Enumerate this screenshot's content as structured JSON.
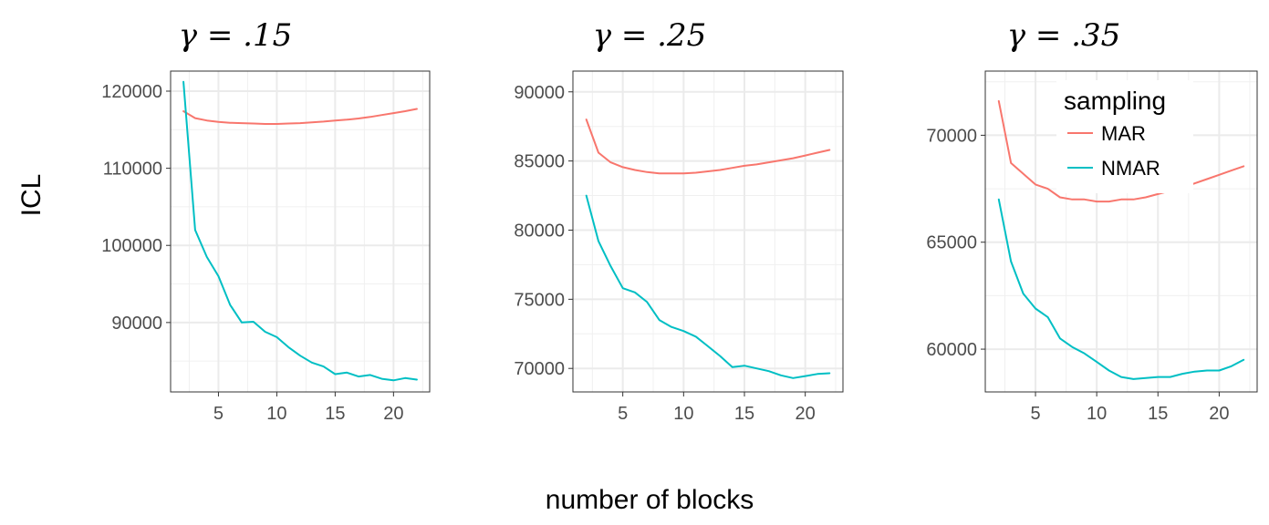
{
  "figure": {
    "ylabel": "ICL",
    "xlabel": "number of blocks"
  },
  "legend": {
    "title": "sampling",
    "items": [
      {
        "label": "MAR",
        "color": "#F8766D"
      },
      {
        "label": "NMAR",
        "color": "#00BFC4"
      }
    ]
  },
  "chart_data": [
    {
      "type": "line",
      "title": "γ = .15",
      "x": [
        2,
        3,
        4,
        5,
        6,
        7,
        8,
        9,
        10,
        11,
        12,
        13,
        14,
        15,
        16,
        17,
        18,
        19,
        20,
        21,
        22
      ],
      "xlim": [
        0.9,
        23.1
      ],
      "xticks": [
        5,
        10,
        15,
        20
      ],
      "ylim": [
        81000,
        122600
      ],
      "yticks": [
        90000,
        100000,
        110000,
        120000
      ],
      "grid": true,
      "series": [
        {
          "name": "MAR",
          "color": "#F8766D",
          "values": [
            117400,
            116500,
            116200,
            116000,
            115900,
            115850,
            115800,
            115750,
            115750,
            115800,
            115850,
            115950,
            116050,
            116200,
            116300,
            116450,
            116650,
            116900,
            117150,
            117400,
            117700
          ]
        },
        {
          "name": "NMAR",
          "color": "#00BFC4",
          "values": [
            121200,
            102000,
            98500,
            96000,
            92300,
            90000,
            90100,
            88800,
            88100,
            86800,
            85700,
            84800,
            84300,
            83300,
            83500,
            83000,
            83200,
            82700,
            82500,
            82800,
            82600
          ]
        }
      ]
    },
    {
      "type": "line",
      "title": "γ = .25",
      "x": [
        2,
        3,
        4,
        5,
        6,
        7,
        8,
        9,
        10,
        11,
        12,
        13,
        14,
        15,
        16,
        17,
        18,
        19,
        20,
        21,
        22
      ],
      "xlim": [
        0.9,
        23.1
      ],
      "xticks": [
        5,
        10,
        15,
        20
      ],
      "ylim": [
        68300,
        91500
      ],
      "yticks": [
        70000,
        75000,
        80000,
        85000,
        90000
      ],
      "grid": true,
      "series": [
        {
          "name": "MAR",
          "color": "#F8766D",
          "values": [
            88000,
            85600,
            84900,
            84550,
            84350,
            84200,
            84100,
            84100,
            84100,
            84150,
            84250,
            84350,
            84500,
            84650,
            84750,
            84900,
            85050,
            85200,
            85400,
            85600,
            85800
          ]
        },
        {
          "name": "NMAR",
          "color": "#00BFC4",
          "values": [
            82500,
            79200,
            77400,
            75800,
            75500,
            74800,
            73500,
            73000,
            72700,
            72300,
            71600,
            70900,
            70100,
            70200,
            70000,
            69800,
            69500,
            69300,
            69450,
            69600,
            69650
          ]
        }
      ]
    },
    {
      "type": "line",
      "title": "γ = .35",
      "x": [
        2,
        3,
        4,
        5,
        6,
        7,
        8,
        9,
        10,
        11,
        12,
        13,
        14,
        15,
        16,
        17,
        18,
        19,
        20,
        21,
        22
      ],
      "xlim": [
        0.9,
        23.1
      ],
      "xticks": [
        5,
        10,
        15,
        20
      ],
      "ylim": [
        58000,
        73000
      ],
      "yticks": [
        60000,
        65000,
        70000
      ],
      "grid": true,
      "legend": "top-inside",
      "series": [
        {
          "name": "MAR",
          "color": "#F8766D",
          "values": [
            71600,
            68700,
            68200,
            67700,
            67500,
            67100,
            67000,
            67000,
            66900,
            66900,
            67000,
            67000,
            67100,
            67250,
            67400,
            67550,
            67750,
            67950,
            68150,
            68350,
            68550
          ]
        },
        {
          "name": "NMAR",
          "color": "#00BFC4",
          "values": [
            67000,
            64100,
            62600,
            61900,
            61500,
            60500,
            60100,
            59800,
            59400,
            59000,
            58700,
            58600,
            58650,
            58700,
            58700,
            58850,
            58950,
            59000,
            59000,
            59200,
            59500
          ]
        }
      ]
    }
  ]
}
